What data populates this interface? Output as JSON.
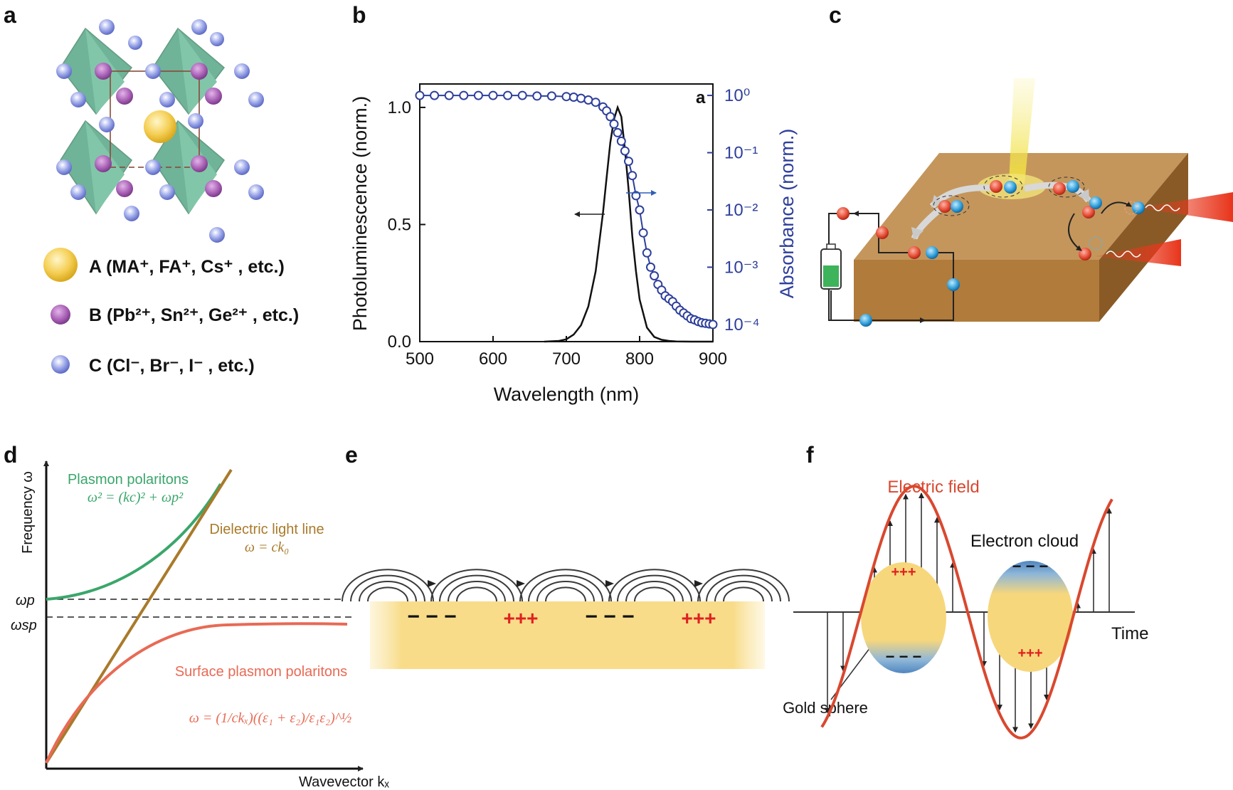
{
  "panels": {
    "a": {
      "label": "a",
      "legend": [
        {
          "ion": "A",
          "text": "(MA⁺, FA⁺, Cs⁺ , etc.)",
          "color": "#f3c94a"
        },
        {
          "ion": "B",
          "text": "(Pb²⁺, Sn²⁺, Ge²⁺ , etc.)",
          "color": "#a35ab0"
        },
        {
          "ion": "C",
          "text": "(Cl⁻, Br⁻, I⁻ , etc.)",
          "color": "#8d9ce6"
        }
      ]
    },
    "b": {
      "label": "b",
      "inset_label": "a"
    },
    "c": {
      "label": "c"
    },
    "d": {
      "label": "d",
      "ylabel": "Frequency ω",
      "xlabel": "Wavevector kₓ",
      "omega_p": "ωp",
      "omega_sp": "ωsp",
      "pp_title": "Plasmon polaritons",
      "pp_eq": "ω² = (kc)² + ωp²",
      "ll_title": "Dielectric light line",
      "ll_eq": "ω = ck₀",
      "spp_title": "Surface plasmon polaritons",
      "spp_eq": "ω = (1/ckₓ)((ε₁ + ε₂)/ε₁ε₂)^½"
    },
    "e": {
      "label": "e",
      "charges": [
        "− − −",
        "+++",
        "− − −",
        "+++"
      ]
    },
    "f": {
      "label": "f",
      "field_label": "Electric field",
      "cloud_label": "Electron cloud",
      "time_label": "Time",
      "sphere_label": "Gold sphere",
      "charges": [
        "+++",
        "− − −",
        "− − −",
        "+++"
      ]
    }
  },
  "colors": {
    "blue_series": "#2e3f9b",
    "green": "#3aa66b",
    "light_line": "#a97a2a",
    "spp": "#e86a55",
    "field": "#d9482f",
    "charge_red": "#e02020"
  },
  "chart_data": {
    "type": "line",
    "title": "",
    "xlabel": "Wavelength (nm)",
    "ylabel": "Photoluminescence (norm.)",
    "y2label": "Absorbance (norm.)",
    "xlim": [
      500,
      900
    ],
    "ylim": [
      0,
      1.1
    ],
    "y2lim_log10": [
      -4.3,
      0.2
    ],
    "x_ticks": [
      "500",
      "600",
      "700",
      "800",
      "900"
    ],
    "y_ticks": [
      "0.0",
      "0.5",
      "1.0"
    ],
    "y2_ticks": [
      "10⁻⁴",
      "10⁻³",
      "10⁻²",
      "10⁻¹",
      "10⁰"
    ],
    "series": [
      {
        "name": "Photoluminescence",
        "axis": "left",
        "x": [
          670,
          690,
          700,
          710,
          720,
          730,
          740,
          750,
          755,
          760,
          765,
          770,
          775,
          780,
          785,
          790,
          795,
          800,
          810,
          820,
          830,
          840,
          850,
          870,
          900
        ],
        "y": [
          0.0,
          0.003,
          0.01,
          0.03,
          0.07,
          0.15,
          0.3,
          0.55,
          0.7,
          0.85,
          0.95,
          1.0,
          0.96,
          0.82,
          0.65,
          0.45,
          0.3,
          0.18,
          0.06,
          0.02,
          0.008,
          0.003,
          0.001,
          0.0,
          0.0
        ]
      },
      {
        "name": "Absorbance",
        "axis": "right",
        "x": [
          500,
          520,
          540,
          560,
          580,
          600,
          620,
          640,
          660,
          680,
          700,
          710,
          720,
          730,
          740,
          750,
          755,
          760,
          765,
          770,
          775,
          780,
          785,
          790,
          795,
          800,
          805,
          810,
          815,
          820,
          825,
          830,
          835,
          840,
          845,
          850,
          855,
          860,
          865,
          870,
          875,
          880,
          885,
          890,
          895,
          900
        ],
        "y_log10": [
          0.0,
          0.0,
          0.0,
          0.0,
          0.0,
          0.0,
          0.0,
          0.0,
          -0.01,
          -0.01,
          -0.02,
          -0.03,
          -0.05,
          -0.08,
          -0.12,
          -0.2,
          -0.27,
          -0.37,
          -0.5,
          -0.65,
          -0.8,
          -0.97,
          -1.15,
          -1.4,
          -1.75,
          -2.0,
          -2.4,
          -2.75,
          -3.0,
          -3.15,
          -3.3,
          -3.4,
          -3.5,
          -3.55,
          -3.6,
          -3.68,
          -3.75,
          -3.8,
          -3.85,
          -3.9,
          -3.92,
          -3.95,
          -3.97,
          -3.98,
          -3.99,
          -4.0
        ]
      }
    ]
  }
}
